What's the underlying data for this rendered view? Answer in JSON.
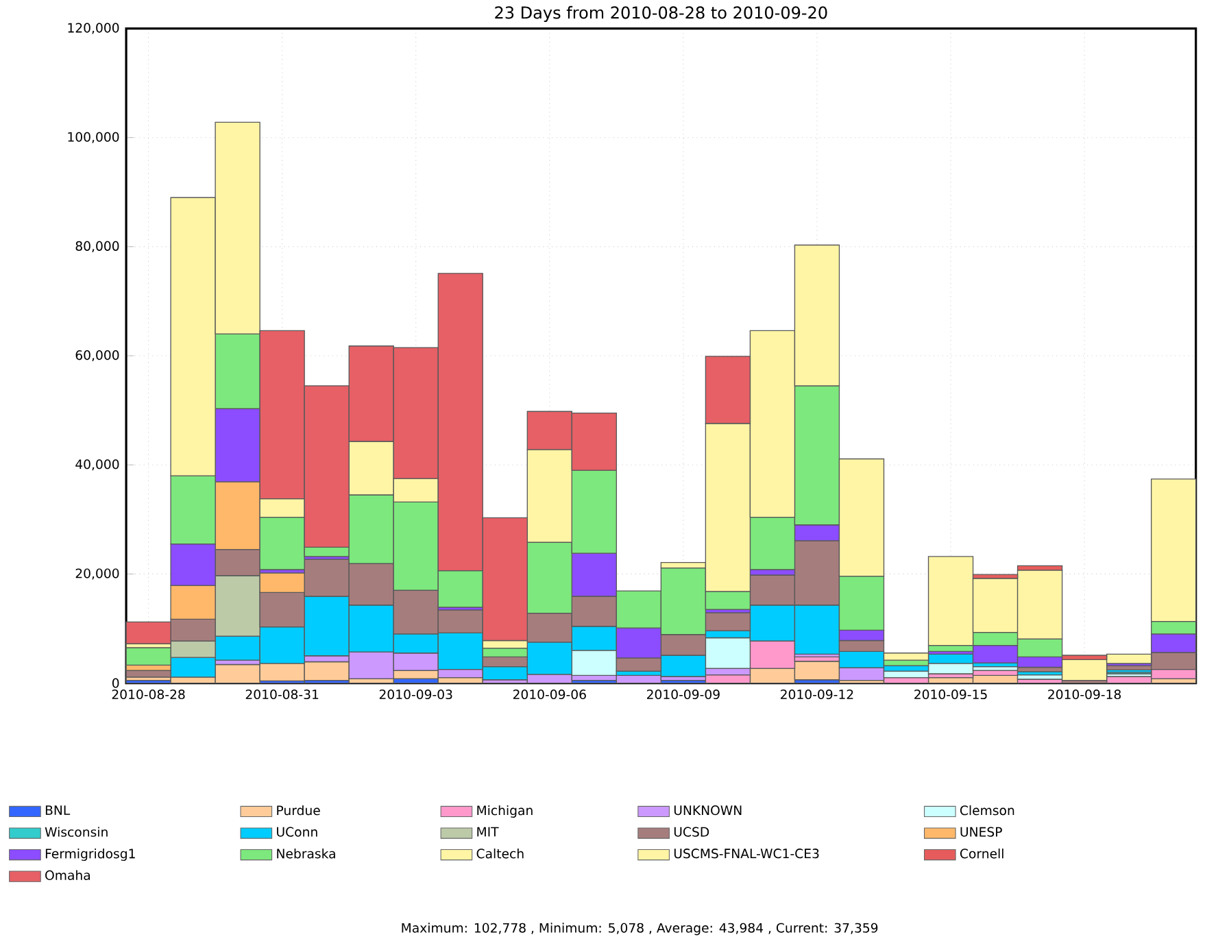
{
  "chart_data": {
    "type": "bar",
    "stacked": true,
    "title": "23 Days from 2010-08-28 to 2010-09-20",
    "categories": [
      "2010-08-28",
      null,
      null,
      "2010-08-31",
      null,
      null,
      "2010-09-03",
      null,
      null,
      "2010-09-06",
      null,
      null,
      "2010-09-09",
      null,
      null,
      "2010-09-12",
      null,
      null,
      "2010-09-15",
      null,
      null,
      "2010-09-18",
      null,
      null
    ],
    "ylim": [
      0,
      120000
    ],
    "yticks": [
      0,
      {
        "value": 20000,
        "label": "20,000"
      },
      {
        "value": 40000,
        "label": "40,000"
      },
      {
        "value": 60000,
        "label": "60,000"
      },
      {
        "value": 80000,
        "label": "80,000"
      },
      {
        "value": 100000,
        "label": "100,000"
      },
      {
        "value": 120000,
        "label": "120,000"
      }
    ],
    "grid": true,
    "legend": "bottom",
    "annotations": [
      "Maximum: 102,778 , Minimum: 5,078 , Average: 43,984 , Current: 37,359"
    ],
    "series": [
      {
        "name": "BNL",
        "color": "#3366ff",
        "values": [
          500,
          null,
          null,
          400,
          500,
          null,
          800,
          null,
          null,
          null,
          500,
          null,
          500,
          null,
          null,
          600,
          null,
          null,
          null,
          null,
          null,
          null,
          null,
          null
        ]
      },
      {
        "name": "Purdue",
        "color": "#ffcc99",
        "values": [
          600,
          1100,
          3400,
          3200,
          3400,
          800,
          1500,
          1000,
          null,
          null,
          null,
          null,
          null,
          null,
          2700,
          3400,
          500,
          null,
          1000,
          1400,
          null,
          null,
          null,
          800
        ]
      },
      {
        "name": "Michigan",
        "color": "#ff99cc",
        "values": [
          null,
          null,
          null,
          null,
          null,
          null,
          null,
          null,
          null,
          null,
          null,
          null,
          null,
          1500,
          5000,
          800,
          null,
          1000,
          700,
          900,
          700,
          null,
          1200,
          1700
        ]
      },
      {
        "name": "UNKNOWN",
        "color": "#cc99ff",
        "values": [
          null,
          null,
          800,
          null,
          1100,
          4900,
          3200,
          1500,
          600,
          1600,
          900,
          1400,
          700,
          1200,
          null,
          500,
          2300,
          null,
          null,
          null,
          null,
          null,
          null,
          null
        ]
      },
      {
        "name": "Clemson",
        "color": "#ccffff",
        "values": [
          null,
          null,
          null,
          null,
          null,
          null,
          null,
          null,
          null,
          null,
          4600,
          null,
          null,
          5600,
          null,
          null,
          null,
          1200,
          1900,
          700,
          800,
          null,
          500,
          null
        ]
      },
      {
        "name": "Wisconsin",
        "color": "#33cccc",
        "values": [
          null,
          null,
          null,
          null,
          null,
          null,
          null,
          null,
          null,
          null,
          null,
          null,
          null,
          null,
          null,
          null,
          null,
          null,
          null,
          null,
          null,
          null,
          300,
          null
        ]
      },
      {
        "name": "UConn",
        "color": "#00ccff",
        "values": [
          null,
          3600,
          4400,
          6700,
          10900,
          8600,
          3500,
          6700,
          2400,
          5900,
          4400,
          800,
          3900,
          1300,
          6600,
          9000,
          3000,
          1000,
          1700,
          700,
          600,
          null,
          400,
          null
        ]
      },
      {
        "name": "MIT",
        "color": "#bccaa8",
        "values": [
          null,
          3000,
          11100,
          null,
          null,
          null,
          null,
          null,
          null,
          null,
          null,
          null,
          null,
          null,
          null,
          null,
          null,
          null,
          null,
          null,
          null,
          null,
          null,
          null
        ]
      },
      {
        "name": "UCSD",
        "color": "#a67d7d",
        "values": [
          1200,
          4000,
          4800,
          6300,
          6800,
          7600,
          8000,
          4200,
          1800,
          5300,
          5500,
          2400,
          3800,
          3300,
          5500,
          11800,
          2000,
          null,
          null,
          null,
          800,
          500,
          800,
          3100
        ]
      },
      {
        "name": "UNESP",
        "color": "#ffb86a",
        "values": [
          1000,
          6200,
          12400,
          3600,
          null,
          null,
          null,
          null,
          null,
          null,
          null,
          null,
          null,
          null,
          null,
          null,
          null,
          null,
          null,
          null,
          null,
          null,
          null,
          null
        ]
      },
      {
        "name": "Fermigridosg1",
        "color": "#8c4cff",
        "values": [
          null,
          7600,
          13400,
          600,
          500,
          null,
          null,
          500,
          null,
          null,
          7900,
          5500,
          null,
          600,
          1000,
          2900,
          1900,
          null,
          500,
          3200,
          1900,
          null,
          400,
          3400
        ]
      },
      {
        "name": "Nebraska",
        "color": "#7de87d",
        "values": [
          3200,
          12500,
          13700,
          9600,
          1700,
          12600,
          16200,
          6700,
          1600,
          13000,
          15200,
          6800,
          12200,
          3300,
          9600,
          25500,
          9900,
          1000,
          1100,
          2400,
          3300,
          null,
          null,
          2300
        ]
      },
      {
        "name": "Caltech",
        "color": "#fff5a5",
        "values": [
          null,
          null,
          null,
          null,
          null,
          null,
          null,
          null,
          null,
          null,
          null,
          null,
          null,
          null,
          null,
          null,
          null,
          null,
          null,
          null,
          null,
          null,
          null,
          null
        ]
      },
      {
        "name": "USCMS-FNAL-WC1-CE3",
        "color": "#fff5a5",
        "values": [
          700,
          51000,
          38800,
          3400,
          null,
          9800,
          4300,
          null,
          1400,
          17000,
          null,
          null,
          1000,
          30800,
          34200,
          25800,
          21500,
          1300,
          16300,
          9900,
          12600,
          3800,
          1700,
          26100
        ]
      },
      {
        "name": "Cornell",
        "color": "#e65c5c",
        "values": [
          null,
          null,
          null,
          null,
          null,
          null,
          null,
          null,
          null,
          null,
          null,
          null,
          null,
          null,
          null,
          null,
          null,
          null,
          null,
          700,
          800,
          800,
          null,
          null
        ]
      },
      {
        "name": "Omaha",
        "color": "#e66066",
        "values": [
          4000,
          null,
          null,
          30800,
          29600,
          17500,
          24000,
          54500,
          22500,
          7000,
          10500,
          null,
          null,
          12300,
          null,
          null,
          null,
          null,
          null,
          null,
          null,
          null,
          null,
          null
        ]
      }
    ]
  }
}
